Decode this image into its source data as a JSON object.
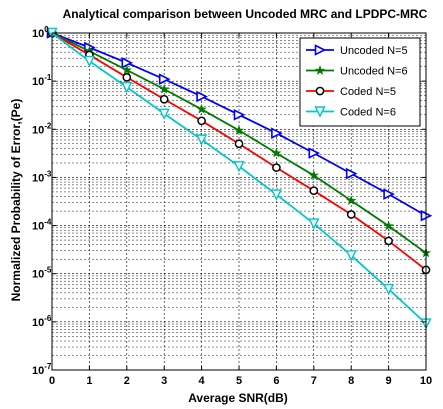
{
  "chart_data": {
    "type": "line",
    "title": "Analytical comparison between Uncoded MRC and LPDPC-MRC",
    "xlabel": "Average SNR(dB)",
    "ylabel": "Normalized Probability of Error,(Pe)",
    "xlim": [
      0,
      10
    ],
    "ylim": [
      1e-07,
      1
    ],
    "yscale": "log",
    "grid": true,
    "legend_position": "top-right",
    "x_ticks": [
      "0",
      "1",
      "2",
      "3",
      "4",
      "5",
      "6",
      "7",
      "8",
      "9",
      "10"
    ],
    "y_ticks": [
      {
        "base": "10",
        "exp": "0"
      },
      {
        "base": "10",
        "exp": "-1"
      },
      {
        "base": "10",
        "exp": "-2"
      },
      {
        "base": "10",
        "exp": "-3"
      },
      {
        "base": "10",
        "exp": "-4"
      },
      {
        "base": "10",
        "exp": "-5"
      },
      {
        "base": "10",
        "exp": "-6"
      },
      {
        "base": "10",
        "exp": "-7"
      }
    ],
    "x": [
      0,
      1,
      2,
      3,
      4,
      5,
      6,
      7,
      8,
      9,
      10
    ],
    "series": [
      {
        "name": "Uncoded N=5",
        "color": "#0000ff",
        "marker": "triangle-right",
        "values": [
          1.0,
          0.5,
          0.24,
          0.11,
          0.048,
          0.02,
          0.0083,
          0.0032,
          0.0012,
          0.00045,
          0.00016
        ]
      },
      {
        "name": "Uncoded N=6",
        "color": "#007a00",
        "marker": "star",
        "values": [
          1.0,
          0.42,
          0.17,
          0.068,
          0.026,
          0.0095,
          0.0032,
          0.0011,
          0.00033,
          9.8e-05,
          2.7e-05
        ]
      },
      {
        "name": "Coded N=5",
        "color": "#ff0000",
        "marker": "circle",
        "values": [
          1.0,
          0.35,
          0.12,
          0.042,
          0.015,
          0.005,
          0.0016,
          0.00053,
          0.00017,
          4.8e-05,
          1.2e-05
        ]
      },
      {
        "name": "Coded N=6",
        "color": "#00c8c8",
        "marker": "triangle-down",
        "values": [
          1.0,
          0.26,
          0.075,
          0.021,
          0.0061,
          0.0017,
          0.00044,
          0.00011,
          2.4e-05,
          4.8e-06,
          9.2e-07
        ]
      }
    ]
  }
}
